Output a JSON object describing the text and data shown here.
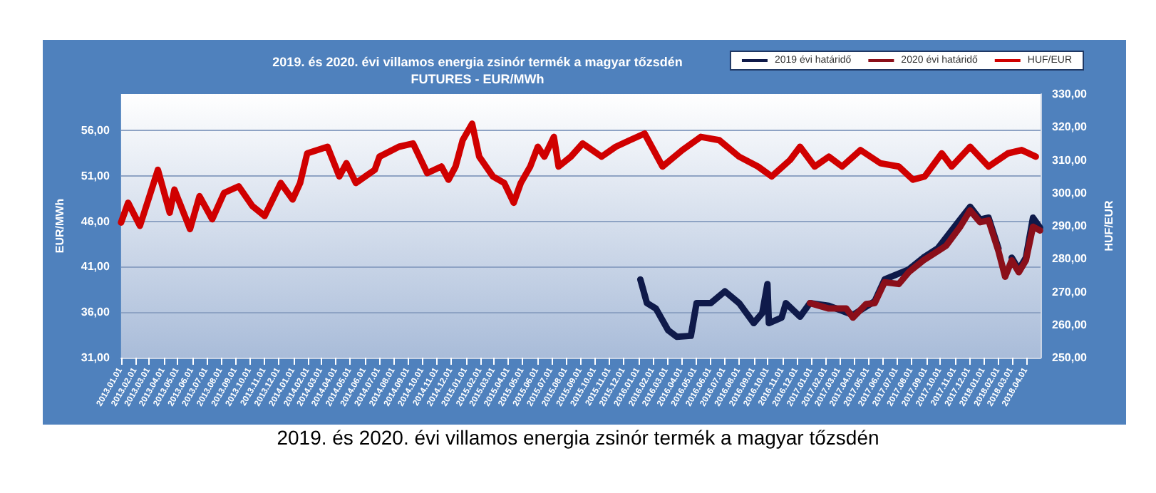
{
  "chart_data": {
    "type": "line",
    "title": "2019. és 2020. évi villamos energia zsinór termék a magyar tőzsdén",
    "subtitle": "FUTURES - EUR/MWh",
    "ylabel": "EUR/MWh",
    "y2label": "HUF/EUR",
    "annotations": [
      "2019. és 2020. évi villamos energia zsinór termék a magyar tőzsdén"
    ],
    "legend": "top right",
    "grid": "y",
    "xlim": [
      "2013-01-01",
      "2018-05-01"
    ],
    "xticks": [
      {
        "value": "2013-01-01",
        "label": "2013.01.01"
      },
      {
        "value": "2013-02-01",
        "label": "2013.02.01"
      },
      {
        "value": "2013-03-01",
        "label": "2013.03.01"
      },
      {
        "value": "2013-04-01",
        "label": "2013.04.01"
      },
      {
        "value": "2013-05-01",
        "label": "2013.05.01"
      },
      {
        "value": "2013-06-01",
        "label": "2013.06.01"
      },
      {
        "value": "2013-07-01",
        "label": "2013.07.01"
      },
      {
        "value": "2013-08-01",
        "label": "2013.08.01"
      },
      {
        "value": "2013-09-01",
        "label": "2013.09.01"
      },
      {
        "value": "2013-10-01",
        "label": "2013.10.01"
      },
      {
        "value": "2013-11-01",
        "label": "2013.11.01"
      },
      {
        "value": "2013-12-01",
        "label": "2013.12.01"
      },
      {
        "value": "2014-01-01",
        "label": "2014.01.01"
      },
      {
        "value": "2014-02-01",
        "label": "2014.02.01"
      },
      {
        "value": "2014-03-01",
        "label": "2014.03.01"
      },
      {
        "value": "2014-04-01",
        "label": "2014.04.01"
      },
      {
        "value": "2014-05-01",
        "label": "2014.05.01"
      },
      {
        "value": "2014-06-01",
        "label": "2014.06.01"
      },
      {
        "value": "2014-07-01",
        "label": "2014.07.01"
      },
      {
        "value": "2014-08-01",
        "label": "2014.08.01"
      },
      {
        "value": "2014-09-01",
        "label": "2014.09.01"
      },
      {
        "value": "2014-10-01",
        "label": "2014.10.01"
      },
      {
        "value": "2014-11-01",
        "label": "2014.11.01"
      },
      {
        "value": "2014-12-01",
        "label": "2014.12.01"
      },
      {
        "value": "2015-01-01",
        "label": "2015.01.01"
      },
      {
        "value": "2015-02-01",
        "label": "2015.02.01"
      },
      {
        "value": "2015-03-01",
        "label": "2015.03.01"
      },
      {
        "value": "2015-04-01",
        "label": "2015.04.01"
      },
      {
        "value": "2015-05-01",
        "label": "2015.05.01"
      },
      {
        "value": "2015-06-01",
        "label": "2015.06.01"
      },
      {
        "value": "2015-07-01",
        "label": "2015.07.01"
      },
      {
        "value": "2015-08-01",
        "label": "2015.08.01"
      },
      {
        "value": "2015-09-01",
        "label": "2015.09.01"
      },
      {
        "value": "2015-10-01",
        "label": "2015.10.01"
      },
      {
        "value": "2015-11-01",
        "label": "2015.11.01"
      },
      {
        "value": "2015-12-01",
        "label": "2015.12.01"
      },
      {
        "value": "2016-01-01",
        "label": "2016.01.01"
      },
      {
        "value": "2016-02-01",
        "label": "2016.02.01"
      },
      {
        "value": "2016-03-01",
        "label": "2016.03.01"
      },
      {
        "value": "2016-04-01",
        "label": "2016.04.01"
      },
      {
        "value": "2016-05-01",
        "label": "2016.05.01"
      },
      {
        "value": "2016-06-01",
        "label": "2016.06.01"
      },
      {
        "value": "2016-07-01",
        "label": "2016.07.01"
      },
      {
        "value": "2016-08-01",
        "label": "2016.08.01"
      },
      {
        "value": "2016-09-01",
        "label": "2016.09.01"
      },
      {
        "value": "2016-10-01",
        "label": "2016.10.01"
      },
      {
        "value": "2016-11-01",
        "label": "2016.11.01"
      },
      {
        "value": "2016-12-01",
        "label": "2016.12.01"
      },
      {
        "value": "2017-01-01",
        "label": "2017.01.01"
      },
      {
        "value": "2017-02-01",
        "label": "2017.02.01"
      },
      {
        "value": "2017-03-01",
        "label": "2017.03.01"
      },
      {
        "value": "2017-04-01",
        "label": "2017.04.01"
      },
      {
        "value": "2017-05-01",
        "label": "2017.05.01"
      },
      {
        "value": "2017-06-01",
        "label": "2017.06.01"
      },
      {
        "value": "2017-07-01",
        "label": "2017.07.01"
      },
      {
        "value": "2017-08-01",
        "label": "2017.08.01"
      },
      {
        "value": "2017-09-01",
        "label": "2017.09.01"
      },
      {
        "value": "2017-10-01",
        "label": "2017.10.01"
      },
      {
        "value": "2017-11-01",
        "label": "2017.11.01"
      },
      {
        "value": "2017-12-01",
        "label": "2017.12.01"
      },
      {
        "value": "2018-01-01",
        "label": "2018.01.01"
      },
      {
        "value": "2018-02-01",
        "label": "2018.02.01"
      },
      {
        "value": "2018-03-01",
        "label": "2018.03.01"
      },
      {
        "value": "2018-04-01",
        "label": "2018.04.01"
      }
    ],
    "ylim": [
      31,
      60
    ],
    "yticks": [
      {
        "value": 31,
        "label": "31,00"
      },
      {
        "value": 36,
        "label": "36,00"
      },
      {
        "value": 41,
        "label": "41,00"
      },
      {
        "value": 46,
        "label": "46,00"
      },
      {
        "value": 51,
        "label": "51,00"
      },
      {
        "value": 56,
        "label": "56,00"
      }
    ],
    "y2lim": [
      250,
      330
    ],
    "y2ticks": [
      {
        "value": 250,
        "label": "250,00"
      },
      {
        "value": 260,
        "label": "260,00"
      },
      {
        "value": 270,
        "label": "270,00"
      },
      {
        "value": 280,
        "label": "280,00"
      },
      {
        "value": 290,
        "label": "290,00"
      },
      {
        "value": 300,
        "label": "300,00"
      },
      {
        "value": 310,
        "label": "310,00"
      },
      {
        "value": 320,
        "label": "320,00"
      },
      {
        "value": 330,
        "label": "330,00"
      }
    ],
    "series": [
      {
        "name": "2019 évi határidő",
        "color": "#0f1a4a",
        "x": [
          "2016-01-05",
          "2016-01-19",
          "2016-02-07",
          "2016-03-04",
          "2016-03-22",
          "2016-04-21",
          "2016-05-03",
          "2016-06-02",
          "2016-07-02",
          "2016-08-01",
          "2016-09-01",
          "2016-09-19",
          "2016-09-30",
          "2016-10-03",
          "2016-10-30",
          "2016-11-08",
          "2016-12-08",
          "2016-12-29",
          "2017-02-07",
          "2017-03-30",
          "2017-05-15",
          "2017-06-05",
          "2017-07-26",
          "2017-08-26",
          "2017-09-25",
          "2017-11-09",
          "2017-12-03",
          "2017-12-24",
          "2018-01-11",
          "2018-02-01",
          "2018-02-15",
          "2018-03-01",
          "2018-03-16",
          "2018-03-31",
          "2018-04-15",
          "2018-04-30"
        ],
        "values": [
          39.6,
          37,
          36.4,
          34,
          33.3,
          33.4,
          37,
          37,
          38.3,
          37,
          34.8,
          35.9,
          39.1,
          34.8,
          35.4,
          37,
          35.5,
          37,
          36.7,
          35.7,
          37.2,
          39.6,
          40.7,
          42,
          43,
          46,
          47.6,
          46.2,
          46.4,
          43,
          null,
          42,
          40.7,
          42,
          46.4,
          45.3
        ]
      },
      {
        "name": "2020 évi határidő",
        "color": "#8b0f1a",
        "x": [
          "2016-12-29",
          "2017-02-07",
          "2017-03-16",
          "2017-03-30",
          "2017-04-27",
          "2017-05-15",
          "2017-06-05",
          "2017-07-05",
          "2017-07-26",
          "2017-08-26",
          "2017-09-25",
          "2017-10-13",
          "2017-11-12",
          "2017-12-03",
          "2017-12-24",
          "2018-01-11",
          "2018-02-01",
          "2018-02-15",
          "2018-03-01",
          "2018-03-16",
          "2018-03-31",
          "2018-04-15",
          "2018-04-30"
        ],
        "values": [
          37,
          36.4,
          36.4,
          35.4,
          36.9,
          37,
          39.3,
          39.1,
          40.4,
          41.7,
          42.7,
          43.3,
          45.4,
          47.2,
          45.9,
          46.1,
          42.7,
          39.9,
          41.7,
          40.4,
          41.7,
          45.4,
          45
        ]
      },
      {
        "name": "HUF/EUR",
        "color": "#d00000",
        "axis": "y2",
        "x": [
          "2013-01-01",
          "2013-01-16",
          "2013-02-10",
          "2013-03-20",
          "2013-04-14",
          "2013-04-24",
          "2013-05-27",
          "2013-06-16",
          "2013-07-13",
          "2013-08-07",
          "2013-09-07",
          "2013-10-06",
          "2013-11-01",
          "2013-12-05",
          "2013-12-30",
          "2014-01-15",
          "2014-01-30",
          "2014-03-14",
          "2014-04-08",
          "2014-04-23",
          "2014-05-13",
          "2014-06-22",
          "2014-07-02",
          "2014-08-12",
          "2014-09-11",
          "2014-10-11",
          "2014-11-10",
          "2014-11-25",
          "2014-12-10",
          "2014-12-25",
          "2015-01-14",
          "2015-01-29",
          "2015-02-27",
          "2015-03-23",
          "2015-04-12",
          "2015-04-27",
          "2015-05-17",
          "2015-06-02",
          "2015-06-16",
          "2015-07-06",
          "2015-07-16",
          "2015-08-11",
          "2015-09-05",
          "2015-09-15",
          "2015-10-15",
          "2015-11-14",
          "2015-12-14",
          "2016-01-14",
          "2016-02-21",
          "2016-04-03",
          "2016-05-12",
          "2016-06-20",
          "2016-08-01",
          "2016-09-10",
          "2016-10-09",
          "2016-11-17",
          "2016-12-08",
          "2017-01-08",
          "2017-02-07",
          "2017-03-07",
          "2017-04-15",
          "2017-05-27",
          "2017-07-05",
          "2017-08-04",
          "2017-08-29",
          "2017-10-04",
          "2017-10-25",
          "2017-12-03",
          "2018-01-11",
          "2018-02-21",
          "2018-03-22",
          "2018-04-21"
        ],
        "values": [
          291,
          297,
          290,
          307,
          294,
          301,
          289,
          299,
          292,
          300,
          302,
          296,
          293,
          303,
          298,
          303,
          312,
          314,
          305,
          309,
          303,
          307,
          311,
          314,
          315,
          306,
          308,
          304,
          308,
          316,
          321,
          311,
          305,
          303,
          297,
          303,
          308,
          314,
          311,
          317,
          308,
          311,
          315,
          314,
          311,
          314,
          316,
          318,
          308,
          313,
          317,
          316,
          311,
          308,
          305,
          310,
          314,
          308,
          311,
          308,
          313,
          309,
          308,
          304,
          305,
          312,
          308,
          314,
          308,
          312,
          313,
          311
        ]
      }
    ]
  }
}
